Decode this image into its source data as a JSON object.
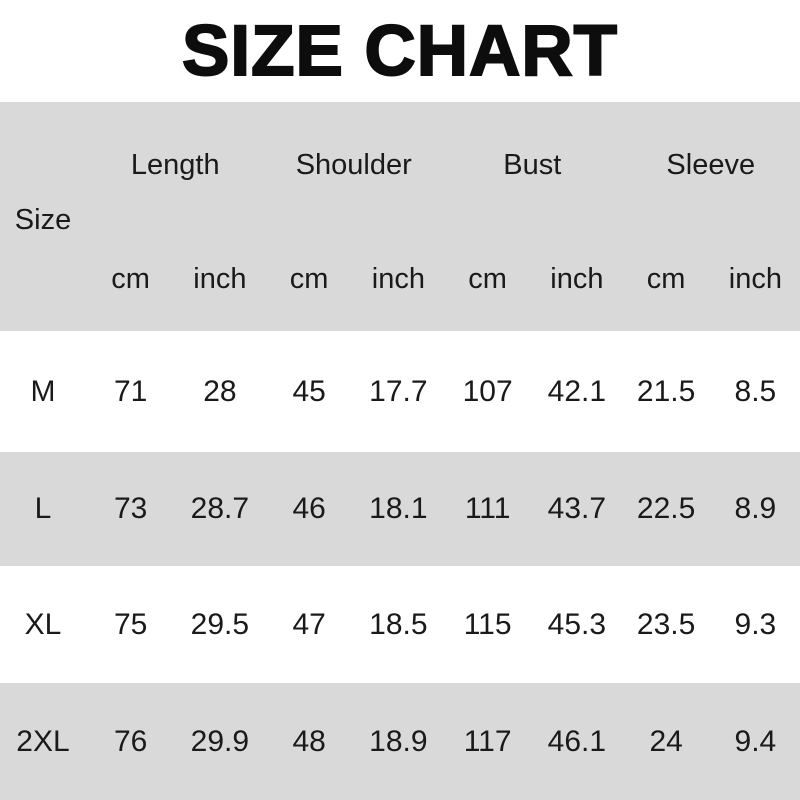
{
  "title": "SIZE CHART",
  "colors": {
    "band_gray": "#d9d9d9",
    "background": "#ffffff",
    "text": "#1a1a1a"
  },
  "table": {
    "size_label": "Size",
    "groups": [
      {
        "label": "Length"
      },
      {
        "label": "Shoulder"
      },
      {
        "label": "Bust"
      },
      {
        "label": "Sleeve"
      }
    ],
    "units": [
      "cm",
      "inch",
      "cm",
      "inch",
      "cm",
      "inch",
      "cm",
      "inch"
    ],
    "rows": [
      {
        "size": "M",
        "values": [
          "71",
          "28",
          "45",
          "17.7",
          "107",
          "42.1",
          "21.5",
          "8.5"
        ]
      },
      {
        "size": "L",
        "values": [
          "73",
          "28.7",
          "46",
          "18.1",
          "111",
          "43.7",
          "22.5",
          "8.9"
        ]
      },
      {
        "size": "XL",
        "values": [
          "75",
          "29.5",
          "47",
          "18.5",
          "115",
          "45.3",
          "23.5",
          "9.3"
        ]
      },
      {
        "size": "2XL",
        "values": [
          "76",
          "29.9",
          "48",
          "18.9",
          "117",
          "46.1",
          "24",
          "9.4"
        ]
      }
    ]
  },
  "chart_data": {
    "type": "table",
    "title": "SIZE CHART",
    "columns": [
      "Size",
      "Length cm",
      "Length inch",
      "Shoulder cm",
      "Shoulder inch",
      "Bust cm",
      "Bust inch",
      "Sleeve cm",
      "Sleeve inch"
    ],
    "rows": [
      [
        "M",
        71,
        28,
        45,
        17.7,
        107,
        42.1,
        21.5,
        8.5
      ],
      [
        "L",
        73,
        28.7,
        46,
        18.1,
        111,
        43.7,
        22.5,
        8.9
      ],
      [
        "XL",
        75,
        29.5,
        47,
        18.5,
        115,
        45.3,
        23.5,
        9.3
      ],
      [
        "2XL",
        76,
        29.9,
        48,
        18.9,
        117,
        46.1,
        24,
        9.4
      ]
    ],
    "layout": "alternating row bands gray/white, header band gray, grouped column headers with cm/inch sub-units"
  }
}
